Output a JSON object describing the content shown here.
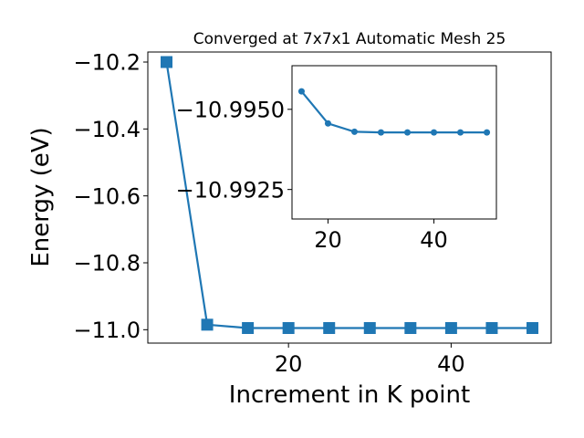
{
  "chart_data": [
    {
      "type": "line",
      "title": "Converged at 7x7x1 Automatic Mesh 25",
      "xlabel": "Increment in K point",
      "ylabel": "Energy (eV)",
      "xlim": [
        2.7,
        52.3
      ],
      "ylim": [
        -11.04,
        -10.17
      ],
      "xticks": [
        20,
        40
      ],
      "xtick_labels": [
        "20",
        "40"
      ],
      "yticks": [
        -10.2,
        -10.4,
        -10.6,
        -10.8,
        -11.0
      ],
      "ytick_labels": [
        "−10.2",
        "−10.4",
        "−10.6",
        "−10.8",
        "−11.0"
      ],
      "grid": false,
      "marker": "square",
      "color": "#1f77b4",
      "series": [
        {
          "x": [
            5,
            10,
            15,
            20,
            25,
            30,
            35,
            40,
            45,
            50
          ],
          "y": [
            -10.2,
            -10.985,
            -10.995,
            -10.995,
            -10.995,
            -10.995,
            -10.995,
            -10.995,
            -10.995,
            -10.995
          ]
        }
      ]
    },
    {
      "type": "line",
      "title": "",
      "xlabel": "",
      "ylabel": "",
      "inset": true,
      "xlim": [
        13.2,
        51.8
      ],
      "ylim": [
        -10.99158,
        -10.99636
      ],
      "xticks": [
        20,
        40
      ],
      "xtick_labels": [
        "20",
        "40"
      ],
      "yticks": [
        -10.995,
        -10.9925
      ],
      "ytick_labels": [
        "−10.9950",
        "−10.9925"
      ],
      "grid": false,
      "marker": "circle",
      "color": "#1f77b4",
      "series": [
        {
          "x": [
            15,
            20,
            25,
            30,
            35,
            40,
            45,
            50
          ],
          "y": [
            -10.99556,
            -10.99456,
            -10.9943,
            -10.99428,
            -10.99428,
            -10.99428,
            -10.99428,
            -10.99428
          ]
        }
      ]
    }
  ]
}
